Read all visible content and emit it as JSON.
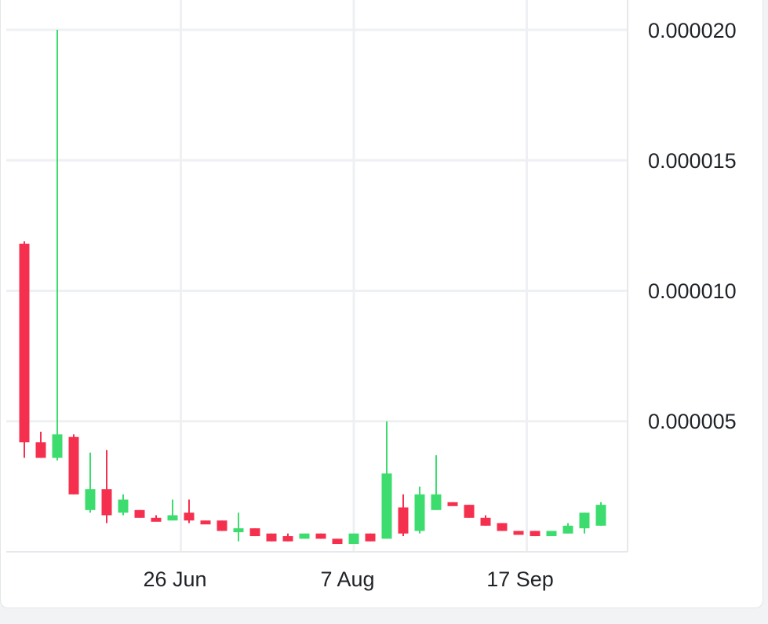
{
  "chart_data": {
    "type": "candlestick",
    "y_ticks": [
      "0.000020",
      "0.000015",
      "0.000010",
      "0.000005"
    ],
    "y_tick_values": [
      2e-05,
      1.5e-05,
      1e-05,
      5e-06
    ],
    "ylim": [
      -0.0,
      2e-05
    ],
    "x_ticks": [
      "26 Jun",
      "7 Aug",
      "17 Sep"
    ],
    "x_tick_index": [
      9.5,
      20,
      30.5
    ],
    "grid": true,
    "colors": {
      "up": "#3ddc6e",
      "down": "#f5304f",
      "grid": "#eef0f3"
    },
    "candles": [
      {
        "o": 1.18e-05,
        "h": 1.19e-05,
        "l": 3.6e-06,
        "c": 4.2e-06
      },
      {
        "o": 4.2e-06,
        "h": 4.6e-06,
        "l": 3.6e-06,
        "c": 3.6e-06
      },
      {
        "o": 3.6e-06,
        "h": 2e-05,
        "l": 3.5e-06,
        "c": 4.5e-06
      },
      {
        "o": 4.4e-06,
        "h": 4.5e-06,
        "l": 2.2e-06,
        "c": 2.2e-06
      },
      {
        "o": 1.6e-06,
        "h": 3.8e-06,
        "l": 1.5e-06,
        "c": 2.4e-06
      },
      {
        "o": 2.4e-06,
        "h": 3.9e-06,
        "l": 1.1e-06,
        "c": 1.4e-06
      },
      {
        "o": 1.5e-06,
        "h": 2.2e-06,
        "l": 1.4e-06,
        "c": 2e-06
      },
      {
        "o": 1.6e-06,
        "h": 1.6e-06,
        "l": 1.3e-06,
        "c": 1.3e-06
      },
      {
        "o": 1.3e-06,
        "h": 1.4e-06,
        "l": 1.2e-06,
        "c": 1.2e-06
      },
      {
        "o": 1.2e-06,
        "h": 2e-06,
        "l": 1.2e-06,
        "c": 1.4e-06
      },
      {
        "o": 1.5e-06,
        "h": 2e-06,
        "l": 1.1e-06,
        "c": 1.2e-06
      },
      {
        "o": 1.2e-06,
        "h": 1.2e-06,
        "l": 1.1e-06,
        "c": 1.1e-06
      },
      {
        "o": 1.2e-06,
        "h": 1.2e-06,
        "l": 8e-07,
        "c": 8e-07
      },
      {
        "o": 9e-07,
        "h": 1.5e-06,
        "l": 4e-07,
        "c": 9e-07
      },
      {
        "o": 9e-07,
        "h": 9e-07,
        "l": 6e-07,
        "c": 6e-07
      },
      {
        "o": 7e-07,
        "h": 7e-07,
        "l": 4e-07,
        "c": 4e-07
      },
      {
        "o": 6e-07,
        "h": 7e-07,
        "l": 4e-07,
        "c": 4e-07
      },
      {
        "o": 5e-07,
        "h": 7e-07,
        "l": 5e-07,
        "c": 7e-07
      },
      {
        "o": 7e-07,
        "h": 7e-07,
        "l": 5e-07,
        "c": 5e-07
      },
      {
        "o": 5e-07,
        "h": 5e-07,
        "l": 3e-07,
        "c": 3e-07
      },
      {
        "o": 3e-07,
        "h": 7e-07,
        "l": 3e-07,
        "c": 7e-07
      },
      {
        "o": 7e-07,
        "h": 7e-07,
        "l": 4e-07,
        "c": 4e-07
      },
      {
        "o": 5e-07,
        "h": 5e-06,
        "l": 5e-07,
        "c": 3e-06
      },
      {
        "o": 1.7e-06,
        "h": 2.2e-06,
        "l": 6e-07,
        "c": 7e-07
      },
      {
        "o": 8e-07,
        "h": 2.5e-06,
        "l": 7e-07,
        "c": 2.2e-06
      },
      {
        "o": 1.6e-06,
        "h": 3.7e-06,
        "l": 1.6e-06,
        "c": 2.2e-06
      },
      {
        "o": 1.9e-06,
        "h": 1.9e-06,
        "l": 1.8e-06,
        "c": 1.8e-06
      },
      {
        "o": 1.8e-06,
        "h": 1.8e-06,
        "l": 1.3e-06,
        "c": 1.3e-06
      },
      {
        "o": 1.3e-06,
        "h": 1.4e-06,
        "l": 1e-06,
        "c": 1e-06
      },
      {
        "o": 1.1e-06,
        "h": 1.1e-06,
        "l": 8e-07,
        "c": 8e-07
      },
      {
        "o": 8e-07,
        "h": 8e-07,
        "l": 7e-07,
        "c": 7e-07
      },
      {
        "o": 8e-07,
        "h": 8e-07,
        "l": 6e-07,
        "c": 6e-07
      },
      {
        "o": 6e-07,
        "h": 8e-07,
        "l": 6e-07,
        "c": 8e-07
      },
      {
        "o": 7e-07,
        "h": 1.1e-06,
        "l": 7e-07,
        "c": 1e-06
      },
      {
        "o": 9e-07,
        "h": 1.5e-06,
        "l": 7e-07,
        "c": 1.5e-06
      },
      {
        "o": 1e-06,
        "h": 1.9e-06,
        "l": 1e-06,
        "c": 1.8e-06
      }
    ]
  }
}
